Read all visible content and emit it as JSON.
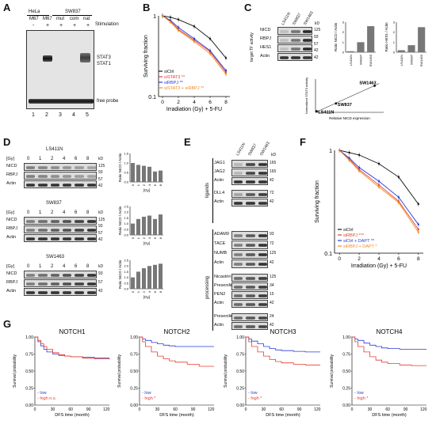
{
  "panels": {
    "A": {
      "label": "A",
      "cell_lines": [
        "HeLa",
        "SW837"
      ],
      "lane_tops": [
        "M67",
        "M67",
        "mut",
        "com",
        "nat"
      ],
      "stim_row": [
        "-",
        "+",
        "+",
        "+",
        "+"
      ],
      "stim_label": "Stimulation",
      "bands": [
        "STAT3",
        "STAT1",
        "free probe"
      ],
      "lane_numbers": [
        "1",
        "2",
        "3",
        "4",
        "5"
      ]
    },
    "B": {
      "label": "B"
    },
    "C": {
      "label": "C",
      "lanes": [
        "LS411N",
        "SW837",
        "SW1463"
      ],
      "rows": [
        "NICD",
        "RBPJ",
        "HES1",
        "Actin"
      ],
      "kd_unit": "kD",
      "mw": [
        "125",
        "93",
        "57",
        "42",
        "42"
      ],
      "side_label": "target TF activity",
      "bar1_ylabel": "Ratio NICD / Actin",
      "bar2_ylabel": "Ratio HES1 / Actin"
    },
    "D": {
      "label": "D",
      "blocks": [
        {
          "title": "LS411N",
          "gy": "[Gy]",
          "doses": [
            "0",
            "1",
            "2",
            "4",
            "6",
            "8"
          ],
          "rows": [
            "NICD",
            "RBPJ",
            "Actin"
          ],
          "mw": [
            "125",
            "93",
            "57",
            "42"
          ]
        },
        {
          "title": "SW837",
          "gy": "[Gy]",
          "doses": [
            "0",
            "1",
            "2",
            "4",
            "6",
            "8"
          ],
          "rows": [
            "NICD",
            "RBPJ",
            "Actin"
          ],
          "mw": [
            "125",
            "93",
            "57",
            "42"
          ]
        },
        {
          "title": "SW1463",
          "gy": "[Gy]",
          "doses": [
            "0",
            "1",
            "2",
            "4",
            "6",
            "8"
          ],
          "rows": [
            "NICD",
            "RBPJ",
            "Actin"
          ],
          "mw": [
            "93",
            "57",
            "42"
          ]
        }
      ],
      "kd_unit": "kD",
      "bar_ylabel": "Ratio NICD / Actin",
      "bar_xlabel": "[Gy]"
    },
    "E": {
      "label": "E",
      "lanes": [
        "LS411N",
        "SW837",
        "SW1463"
      ],
      "kd_unit": "kD",
      "ligand_rows": [
        "JAG1",
        "JAG2",
        "Actin",
        "DLL4",
        "Actin"
      ],
      "ligand_mw": [
        "165",
        "165",
        "42",
        "72",
        "42"
      ],
      "proc_rows": [
        "ADAM9",
        "TACE",
        "NUMB",
        "Actin",
        "Nicastrin",
        "Presenilin2",
        "PEN2",
        "Actin",
        "Presenilin1",
        "Actin"
      ],
      "proc_mw": [
        "93",
        "72",
        "125",
        "72",
        "42",
        "125",
        "34",
        "15",
        "42",
        "24",
        "42"
      ],
      "group_ligands": "ligands",
      "group_processing": "processing"
    },
    "F": {
      "label": "F"
    },
    "G": {
      "label": "G"
    }
  },
  "chart_data": [
    {
      "id": "B",
      "type": "line",
      "xlabel": "Irradiation (Gy) + 5-FU",
      "ylabel": "Surviving fraction",
      "x": [
        0,
        1,
        2,
        4,
        6,
        8
      ],
      "xlim": [
        -0.5,
        8.5
      ],
      "ylim": [
        0.1,
        1
      ],
      "yscale": "log",
      "yticks": [
        "1",
        "0.1"
      ],
      "xticks": [
        "0",
        "2",
        "4",
        "6",
        "8"
      ],
      "legend_position": "bottom-left",
      "series": [
        {
          "name": "siCtrl",
          "color": "#111111",
          "values": [
            1.0,
            0.96,
            0.9,
            0.74,
            0.52,
            0.3
          ]
        },
        {
          "name": "siSTAT3 **",
          "color": "#e63c2f",
          "values": [
            1.0,
            0.86,
            0.68,
            0.5,
            0.36,
            0.2
          ]
        },
        {
          "name": "siRBPJ **",
          "color": "#2a3bd6",
          "values": [
            1.0,
            0.88,
            0.72,
            0.52,
            0.37,
            0.21
          ]
        },
        {
          "name": "siSTAT3 + siRBPJ **",
          "color": "#f08a1c",
          "values": [
            1.0,
            0.84,
            0.66,
            0.48,
            0.34,
            0.19
          ]
        }
      ]
    },
    {
      "id": "C-bar1",
      "type": "bar",
      "categories": [
        "LS411N",
        "SW837",
        "SW1463"
      ],
      "values": [
        0.1,
        1.0,
        2.6
      ],
      "ylim": [
        0,
        3
      ],
      "yticks": [
        "0",
        "1",
        "2",
        "3"
      ],
      "ylabel": "Ratio NICD / Actin"
    },
    {
      "id": "C-bar2",
      "type": "bar",
      "categories": [
        "LS411N",
        "SW837",
        "SW1463"
      ],
      "values": [
        0.2,
        0.7,
        2.5
      ],
      "ylim": [
        0,
        3
      ],
      "yticks": [
        "0",
        "1",
        "2",
        "3"
      ],
      "ylabel": "Ratio HES1 / Actin"
    },
    {
      "id": "C-scatter",
      "type": "scatter",
      "xlabel": "Relative NICD expression",
      "ylabel": "Normalized STAT3 activity",
      "xlim": [
        0,
        3
      ],
      "ylim": [
        0,
        3
      ],
      "points": [
        {
          "label": "LS411N",
          "x": 0.05,
          "y": 0.1
        },
        {
          "label": "SW837",
          "x": 0.9,
          "y": 0.8
        },
        {
          "label": "SW1463",
          "x": 2.6,
          "y": 2.4
        }
      ]
    },
    {
      "id": "D-LS411N",
      "type": "bar",
      "categories": [
        "0",
        "1",
        "2",
        "4",
        "6",
        "8"
      ],
      "values": [
        1.0,
        0.9,
        0.85,
        0.8,
        0.55,
        0.6
      ],
      "ylim": [
        0,
        1.5
      ],
      "yticks": [
        "0.0",
        "0.5",
        "1.0",
        "1.5"
      ],
      "xlabel": "[Gy]",
      "ylabel": "Ratio NICD / Actin"
    },
    {
      "id": "D-SW837",
      "type": "bar",
      "categories": [
        "0",
        "1",
        "2",
        "4",
        "6",
        "8"
      ],
      "values": [
        1.0,
        1.4,
        1.6,
        1.7,
        1.4,
        1.8
      ],
      "ylim": [
        0,
        2.5
      ],
      "yticks": [
        "0.0",
        "0.5",
        "1.0",
        "1.5",
        "2.0",
        "2.5"
      ],
      "xlabel": "[Gy]",
      "ylabel": "Ratio NICD / Actin"
    },
    {
      "id": "D-SW1463",
      "type": "bar",
      "categories": [
        "0",
        "1",
        "2",
        "4",
        "6",
        "8"
      ],
      "values": [
        1.0,
        1.5,
        1.8,
        2.0,
        2.1,
        2.2
      ],
      "ylim": [
        0,
        2.5
      ],
      "yticks": [
        "0.0",
        "0.5",
        "1.0",
        "1.5",
        "2.0",
        "2.5"
      ],
      "xlabel": "[Gy]",
      "ylabel": "Ratio NICD / Actin"
    },
    {
      "id": "F",
      "type": "line",
      "xlabel": "Irradiation (Gy) + 5-FU",
      "ylabel": "Surviving fraction",
      "x": [
        0,
        1,
        2,
        4,
        6,
        8
      ],
      "xlim": [
        -0.5,
        8.5
      ],
      "ylim": [
        0.1,
        1
      ],
      "yscale": "log",
      "yticks": [
        "1",
        "0.1"
      ],
      "xticks": [
        "0",
        "2",
        "4",
        "6",
        "8"
      ],
      "legend_position": "bottom-left",
      "series": [
        {
          "name": "siCtrl",
          "color": "#111111",
          "values": [
            1.0,
            0.95,
            0.9,
            0.74,
            0.55,
            0.3
          ]
        },
        {
          "name": "siRBPJ ***",
          "color": "#e63c2f",
          "values": [
            1.0,
            0.82,
            0.65,
            0.46,
            0.32,
            0.17
          ]
        },
        {
          "name": "siCtrl + DAPT **",
          "color": "#2a3bd6",
          "values": [
            1.0,
            0.84,
            0.68,
            0.5,
            0.35,
            0.19
          ]
        },
        {
          "name": "siRBPJ + DAPT *",
          "color": "#f08a1c",
          "values": [
            1.0,
            0.8,
            0.63,
            0.44,
            0.31,
            0.16
          ]
        }
      ]
    },
    {
      "id": "G-NOTCH1",
      "type": "line",
      "title": "NOTCH1",
      "xlabel": "DFS time (month)",
      "ylabel": "Survival probability",
      "xticks": [
        "0",
        "30",
        "60",
        "90",
        "120"
      ],
      "yticks": [
        "0.00",
        "0.25",
        "0.50",
        "0.75",
        "1.00"
      ],
      "xlim": [
        0,
        125
      ],
      "ylim": [
        0,
        1
      ],
      "legend": [
        "low",
        "high n.s."
      ],
      "series": [
        {
          "name": "low",
          "color": "#2a3bd6",
          "x": [
            0,
            5,
            10,
            15,
            20,
            30,
            40,
            50,
            60,
            80,
            100,
            125
          ],
          "values": [
            1.0,
            0.93,
            0.87,
            0.82,
            0.78,
            0.75,
            0.73,
            0.72,
            0.71,
            0.7,
            0.69,
            0.69
          ]
        },
        {
          "name": "high",
          "color": "#e63c2f",
          "x": [
            0,
            5,
            10,
            15,
            20,
            30,
            40,
            50,
            60,
            80,
            100,
            125
          ],
          "values": [
            1.0,
            0.95,
            0.9,
            0.86,
            0.82,
            0.77,
            0.74,
            0.72,
            0.71,
            0.69,
            0.68,
            0.67
          ]
        }
      ]
    },
    {
      "id": "G-NOTCH2",
      "type": "line",
      "title": "NOTCH2",
      "xlabel": "DFS time (month)",
      "ylabel": "Survival probability",
      "xticks": [
        "0",
        "30",
        "60",
        "90",
        "120"
      ],
      "yticks": [
        "0.00",
        "0.25",
        "0.50",
        "0.75",
        "1.00"
      ],
      "xlim": [
        0,
        125
      ],
      "ylim": [
        0,
        1
      ],
      "legend": [
        "low",
        "high *"
      ],
      "series": [
        {
          "name": "low",
          "color": "#2a3bd6",
          "x": [
            0,
            5,
            10,
            20,
            30,
            40,
            50,
            60,
            80,
            100,
            125
          ],
          "values": [
            1.0,
            0.97,
            0.95,
            0.92,
            0.9,
            0.88,
            0.87,
            0.86,
            0.86,
            0.86,
            0.86
          ]
        },
        {
          "name": "high",
          "color": "#e63c2f",
          "x": [
            0,
            5,
            10,
            20,
            30,
            40,
            50,
            60,
            80,
            100,
            125
          ],
          "values": [
            1.0,
            0.93,
            0.86,
            0.78,
            0.72,
            0.68,
            0.65,
            0.63,
            0.6,
            0.57,
            0.57
          ]
        }
      ]
    },
    {
      "id": "G-NOTCH3",
      "type": "line",
      "title": "NOTCH3",
      "xlabel": "DFS time (month)",
      "ylabel": "Survival probability",
      "xticks": [
        "0",
        "30",
        "60",
        "90",
        "120"
      ],
      "yticks": [
        "0.00",
        "0.25",
        "0.50",
        "0.75",
        "1.00"
      ],
      "xlim": [
        0,
        125
      ],
      "ylim": [
        0,
        1
      ],
      "legend": [
        "low",
        "high *"
      ],
      "series": [
        {
          "name": "low",
          "color": "#2a3bd6",
          "x": [
            0,
            5,
            10,
            20,
            30,
            40,
            50,
            60,
            80,
            100,
            125
          ],
          "values": [
            1.0,
            0.97,
            0.94,
            0.9,
            0.86,
            0.83,
            0.81,
            0.8,
            0.79,
            0.78,
            0.78
          ]
        },
        {
          "name": "high",
          "color": "#e63c2f",
          "x": [
            0,
            5,
            10,
            20,
            30,
            40,
            50,
            60,
            80,
            100,
            125
          ],
          "values": [
            1.0,
            0.93,
            0.86,
            0.78,
            0.72,
            0.67,
            0.64,
            0.62,
            0.6,
            0.59,
            0.59
          ]
        }
      ]
    },
    {
      "id": "G-NOTCH4",
      "type": "line",
      "title": "NOTCH4",
      "xlabel": "DFS time (month)",
      "ylabel": "Survival probability",
      "xticks": [
        "0",
        "30",
        "60",
        "90",
        "120"
      ],
      "yticks": [
        "0.00",
        "0.25",
        "0.50",
        "0.75",
        "1.00"
      ],
      "xlim": [
        0,
        125
      ],
      "ylim": [
        0,
        1
      ],
      "legend": [
        "low",
        "high *"
      ],
      "series": [
        {
          "name": "low",
          "color": "#2a3bd6",
          "x": [
            0,
            5,
            10,
            20,
            30,
            40,
            50,
            60,
            80,
            100,
            125
          ],
          "values": [
            1.0,
            0.97,
            0.95,
            0.91,
            0.88,
            0.86,
            0.84,
            0.83,
            0.82,
            0.82,
            0.82
          ]
        },
        {
          "name": "high",
          "color": "#e63c2f",
          "x": [
            0,
            5,
            10,
            20,
            30,
            40,
            50,
            60,
            80,
            100,
            125
          ],
          "values": [
            1.0,
            0.93,
            0.86,
            0.78,
            0.71,
            0.66,
            0.63,
            0.61,
            0.59,
            0.58,
            0.58
          ]
        }
      ]
    }
  ]
}
